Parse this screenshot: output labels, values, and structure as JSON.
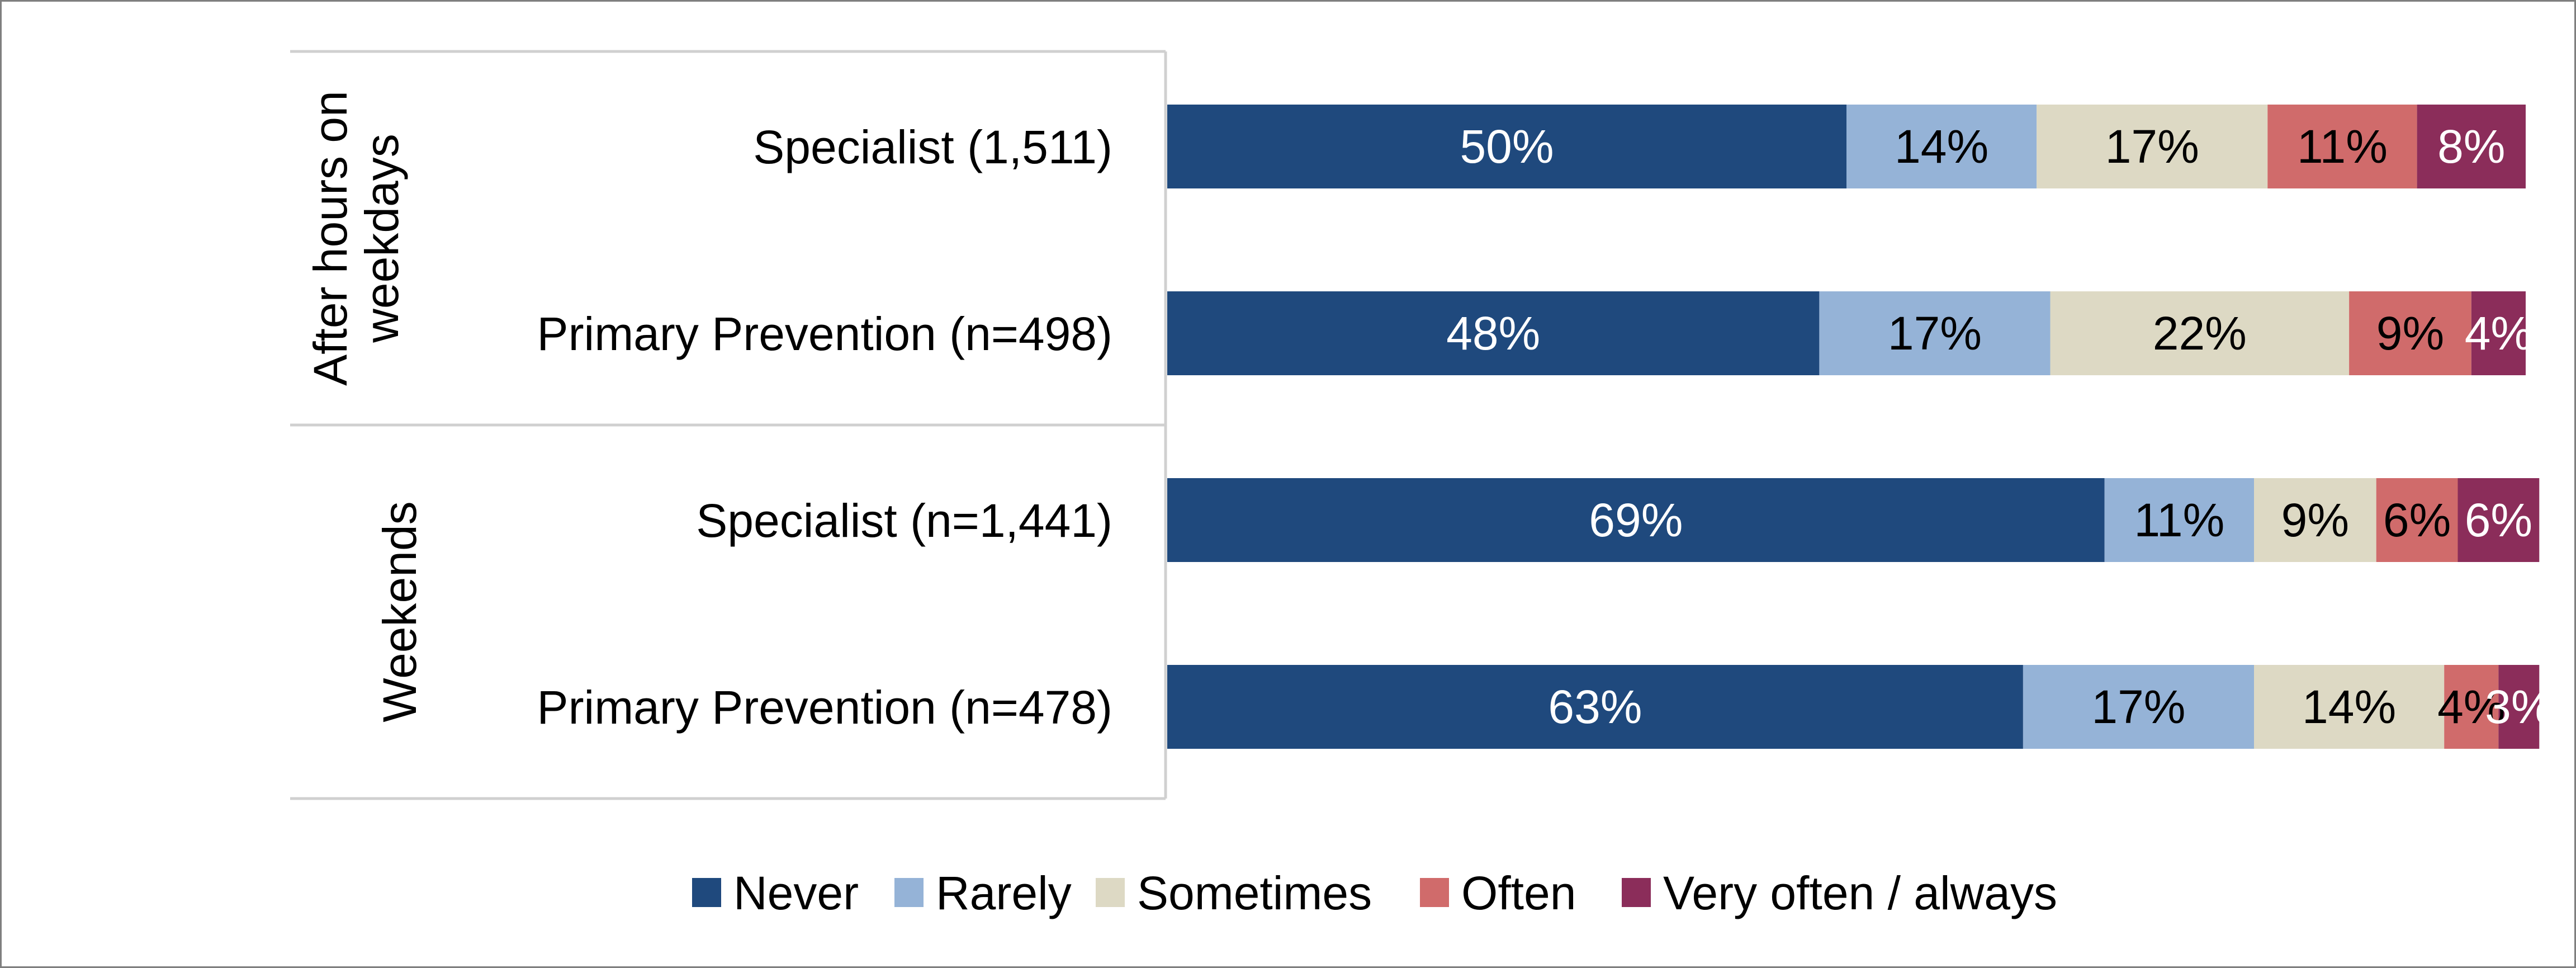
{
  "chart_data": {
    "type": "bar",
    "orientation": "horizontal",
    "stacked": true,
    "percent_stacked": true,
    "xlim": [
      0,
      100
    ],
    "groups": [
      {
        "label": "After hours on weekdays",
        "rows": [
          0,
          1
        ]
      },
      {
        "label": "Weekends",
        "rows": [
          2,
          3
        ]
      }
    ],
    "categories": [
      "Specialist (1,511)",
      "Primary Prevention (n=498)",
      "Specialist (n=1,441)",
      "Primary Prevention (n=478)"
    ],
    "series": [
      {
        "name": "Never",
        "color": "#1f497d",
        "label_color": "#ffffff",
        "values": [
          50,
          48,
          69,
          63
        ]
      },
      {
        "name": "Rarely",
        "color": "#95b3d7",
        "label_color": "#000000",
        "values": [
          14,
          17,
          11,
          17
        ]
      },
      {
        "name": "Sometimes",
        "color": "#ddd9c4",
        "label_color": "#000000",
        "values": [
          17,
          22,
          9,
          14
        ]
      },
      {
        "name": "Often",
        "color": "#d06b6b",
        "label_color": "#000000",
        "values": [
          11,
          9,
          6,
          4
        ]
      },
      {
        "name": "Very often / always",
        "color": "#8b2d5a",
        "label_color": "#ffffff",
        "values": [
          8,
          4,
          6,
          3
        ]
      }
    ],
    "value_labels": [
      [
        "50%",
        "48%",
        "69%",
        "63%"
      ],
      [
        "14%",
        "17%",
        "11%",
        "17%"
      ],
      [
        "17%",
        "22%",
        "9%",
        "14%"
      ],
      [
        "11%",
        "9%",
        "6%",
        "4%"
      ],
      [
        "8%",
        "4%",
        "6%",
        "3%"
      ]
    ],
    "legend_position": "bottom",
    "grid": false
  }
}
